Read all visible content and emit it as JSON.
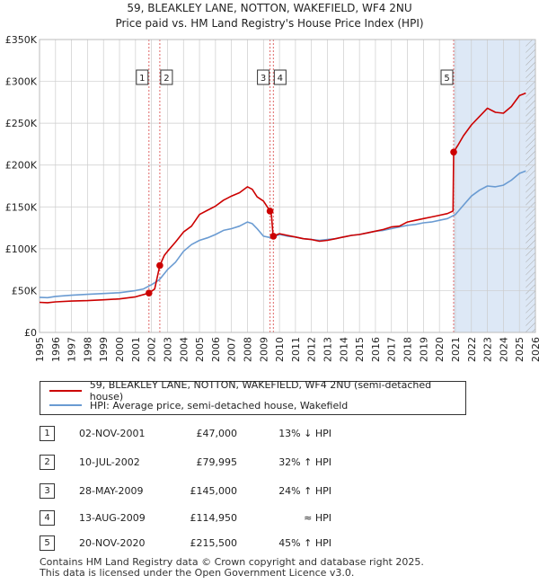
{
  "title": "59, BLEAKLEY LANE, NOTTON, WAKEFIELD, WF4 2NU",
  "subtitle": "Price paid vs. HM Land Registry's House Price Index (HPI)",
  "colors": {
    "property": "#cc0000",
    "hpi": "#6a9bd2",
    "shade": "#dde8f6",
    "grid": "#cccccc",
    "vline": "#e06666"
  },
  "legend": {
    "property": "59, BLEAKLEY LANE, NOTTON, WAKEFIELD, WF4 2NU (semi-detached house)",
    "hpi": "HPI: Average price, semi-detached house, Wakefield"
  },
  "transactions": [
    {
      "num": "1",
      "date": "02-NOV-2001",
      "price": "£47,000",
      "hpi": "13% ↓ HPI"
    },
    {
      "num": "2",
      "date": "10-JUL-2002",
      "price": "£79,995",
      "hpi": "32% ↑ HPI"
    },
    {
      "num": "3",
      "date": "28-MAY-2009",
      "price": "£145,000",
      "hpi": "24% ↑ HPI"
    },
    {
      "num": "4",
      "date": "13-AUG-2009",
      "price": "£114,950",
      "hpi": "≈ HPI"
    },
    {
      "num": "5",
      "date": "20-NOV-2020",
      "price": "£215,500",
      "hpi": "45% ↑ HPI"
    }
  ],
  "footer": {
    "line1": "Contains HM Land Registry data © Crown copyright and database right 2025.",
    "line2": "This data is licensed under the Open Government Licence v3.0."
  },
  "chart_data": {
    "type": "line",
    "title": "Price paid vs. HM Land Registry's House Price Index (HPI)",
    "xlim": [
      1995,
      2026
    ],
    "ylim": [
      0,
      350000
    ],
    "x_ticks": [
      1995,
      1996,
      1997,
      1998,
      1999,
      2000,
      2001,
      2002,
      2003,
      2004,
      2005,
      2006,
      2007,
      2008,
      2009,
      2010,
      2011,
      2012,
      2013,
      2014,
      2015,
      2016,
      2017,
      2018,
      2019,
      2020,
      2021,
      2022,
      2023,
      2024,
      2025,
      2026
    ],
    "y_ticks": [
      {
        "value": 0,
        "label": "£0"
      },
      {
        "value": 50000,
        "label": "£50K"
      },
      {
        "value": 100000,
        "label": "£100K"
      },
      {
        "value": 150000,
        "label": "£150K"
      },
      {
        "value": 200000,
        "label": "£200K"
      },
      {
        "value": 250000,
        "label": "£250K"
      },
      {
        "value": 300000,
        "label": "£300K"
      },
      {
        "value": 350000,
        "label": "£350K"
      }
    ],
    "shaded_range": [
      2020.89,
      2026
    ],
    "hatched_range": [
      2025.4,
      2026
    ],
    "series": [
      {
        "name": "HPI: Average price, semi-detached house, Wakefield",
        "color": "#6a9bd2",
        "points": [
          [
            1995,
            42000
          ],
          [
            1995.5,
            41500
          ],
          [
            1996,
            43000
          ],
          [
            1997,
            44500
          ],
          [
            1998,
            45500
          ],
          [
            1999,
            46500
          ],
          [
            2000,
            47500
          ],
          [
            2001,
            50000
          ],
          [
            2001.5,
            52000
          ],
          [
            2002,
            57000
          ],
          [
            2002.5,
            63000
          ],
          [
            2003,
            75000
          ],
          [
            2003.5,
            84000
          ],
          [
            2004,
            97000
          ],
          [
            2004.5,
            105000
          ],
          [
            2005,
            110000
          ],
          [
            2005.5,
            113000
          ],
          [
            2006,
            117000
          ],
          [
            2006.5,
            122000
          ],
          [
            2007,
            124000
          ],
          [
            2007.5,
            127000
          ],
          [
            2008,
            132000
          ],
          [
            2008.3,
            130000
          ],
          [
            2008.6,
            124000
          ],
          [
            2009,
            115000
          ],
          [
            2009.5,
            113000
          ],
          [
            2010,
            117000
          ],
          [
            2010.5,
            115000
          ],
          [
            2011,
            114000
          ],
          [
            2011.5,
            112000
          ],
          [
            2012,
            111000
          ],
          [
            2012.5,
            110000
          ],
          [
            2013,
            111000
          ],
          [
            2013.5,
            112000
          ],
          [
            2014,
            114000
          ],
          [
            2014.5,
            116000
          ],
          [
            2015,
            117000
          ],
          [
            2015.5,
            119000
          ],
          [
            2016,
            121000
          ],
          [
            2016.5,
            122000
          ],
          [
            2017,
            124000
          ],
          [
            2017.5,
            126000
          ],
          [
            2018,
            128000
          ],
          [
            2018.5,
            129000
          ],
          [
            2019,
            131000
          ],
          [
            2019.5,
            132000
          ],
          [
            2020,
            134000
          ],
          [
            2020.5,
            136000
          ],
          [
            2021,
            141000
          ],
          [
            2021.5,
            152000
          ],
          [
            2022,
            163000
          ],
          [
            2022.5,
            170000
          ],
          [
            2023,
            175000
          ],
          [
            2023.5,
            174000
          ],
          [
            2024,
            176000
          ],
          [
            2024.5,
            182000
          ],
          [
            2025,
            190000
          ],
          [
            2025.4,
            193000
          ]
        ]
      },
      {
        "name": "59, BLEAKLEY LANE, NOTTON, WAKEFIELD, WF4 2NU (semi-detached house)",
        "color": "#cc0000",
        "points": [
          [
            1995,
            36000
          ],
          [
            1995.5,
            35500
          ],
          [
            1996,
            36500
          ],
          [
            1997,
            37500
          ],
          [
            1998,
            38000
          ],
          [
            1999,
            39000
          ],
          [
            2000,
            40000
          ],
          [
            2001,
            42500
          ],
          [
            2001.84,
            47000
          ],
          [
            2002.2,
            52000
          ],
          [
            2002.52,
            79995
          ],
          [
            2002.8,
            92000
          ],
          [
            2003,
            97000
          ],
          [
            2003.5,
            108000
          ],
          [
            2004,
            120000
          ],
          [
            2004.5,
            127000
          ],
          [
            2005,
            141000
          ],
          [
            2005.5,
            146000
          ],
          [
            2006,
            151000
          ],
          [
            2006.5,
            158000
          ],
          [
            2007,
            163000
          ],
          [
            2007.5,
            167000
          ],
          [
            2008,
            174000
          ],
          [
            2008.3,
            171000
          ],
          [
            2008.6,
            162000
          ],
          [
            2009,
            157000
          ],
          [
            2009.41,
            145000
          ],
          [
            2009.5,
            140000
          ],
          [
            2009.6,
            114950
          ],
          [
            2010,
            118000
          ],
          [
            2010.5,
            116000
          ],
          [
            2011,
            114000
          ],
          [
            2011.5,
            112000
          ],
          [
            2012,
            111000
          ],
          [
            2012.5,
            109000
          ],
          [
            2013,
            110000
          ],
          [
            2013.5,
            112000
          ],
          [
            2014,
            114000
          ],
          [
            2014.5,
            116000
          ],
          [
            2015,
            117000
          ],
          [
            2015.5,
            119000
          ],
          [
            2016,
            121000
          ],
          [
            2016.5,
            123000
          ],
          [
            2017,
            126000
          ],
          [
            2017.5,
            127000
          ],
          [
            2018,
            132000
          ],
          [
            2018.5,
            134000
          ],
          [
            2019,
            136000
          ],
          [
            2019.5,
            138000
          ],
          [
            2020,
            140000
          ],
          [
            2020.5,
            142000
          ],
          [
            2020.85,
            145000
          ],
          [
            2020.89,
            215500
          ],
          [
            2021.2,
            225000
          ],
          [
            2021.5,
            235000
          ],
          [
            2022,
            248000
          ],
          [
            2022.5,
            258000
          ],
          [
            2023,
            268000
          ],
          [
            2023.5,
            263000
          ],
          [
            2024,
            262000
          ],
          [
            2024.5,
            270000
          ],
          [
            2025,
            283000
          ],
          [
            2025.4,
            286000
          ]
        ]
      }
    ],
    "sales": [
      {
        "label": "1",
        "x": 2001.84,
        "y": 47000
      },
      {
        "label": "2",
        "x": 2002.52,
        "y": 79995
      },
      {
        "label": "3",
        "x": 2009.41,
        "y": 145000
      },
      {
        "label": "4",
        "x": 2009.62,
        "y": 114950
      },
      {
        "label": "5",
        "x": 2020.89,
        "y": 215500
      }
    ],
    "marker_boxes": [
      {
        "label": "1",
        "x": 2001.84,
        "side": "left"
      },
      {
        "label": "2",
        "x": 2002.52,
        "side": "right"
      },
      {
        "label": "3",
        "x": 2009.41,
        "side": "left"
      },
      {
        "label": "4",
        "x": 2009.62,
        "side": "right"
      },
      {
        "label": "5",
        "x": 2020.89,
        "side": "left"
      }
    ]
  }
}
